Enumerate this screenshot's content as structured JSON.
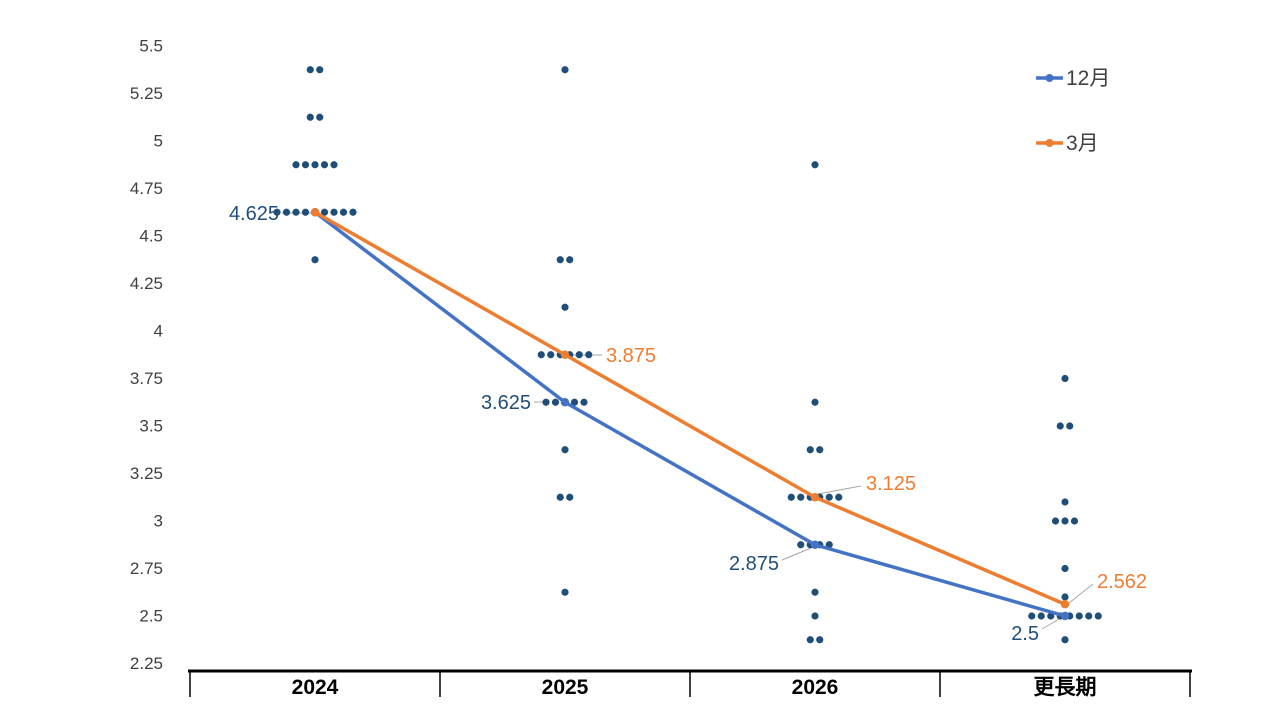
{
  "chart_data": {
    "type": "scatter",
    "categories": [
      "2024",
      "2025",
      "2026",
      "更長期"
    ],
    "ylim": [
      2.25,
      5.5
    ],
    "ytick_step": 0.25,
    "yticks": [
      "5.5",
      "5.25",
      "5",
      "4.75",
      "4.5",
      "4.25",
      "4",
      "3.75",
      "3.5",
      "3.25",
      "3",
      "2.75",
      "2.5",
      "2.25"
    ],
    "grid": false,
    "legend_position": "top-right",
    "colors": {
      "dots": "#1f4e79",
      "december_line": "#4472c4",
      "march_line": "#ed7d31",
      "leader_line": "#a6a6a6",
      "axis_line": "#000000",
      "ytick_label": "#404040",
      "category_label": "#000000",
      "legend_label": "#404040"
    },
    "dot_series": {
      "name": "participant-dots",
      "color": "#1f4e79",
      "points": [
        {
          "category": "2024",
          "value": 5.375,
          "count": 2
        },
        {
          "category": "2024",
          "value": 5.125,
          "count": 2
        },
        {
          "category": "2024",
          "value": 4.875,
          "count": 5
        },
        {
          "category": "2024",
          "value": 4.625,
          "count": 9
        },
        {
          "category": "2024",
          "value": 4.375,
          "count": 1
        },
        {
          "category": "2025",
          "value": 5.375,
          "count": 1
        },
        {
          "category": "2025",
          "value": 4.375,
          "count": 2
        },
        {
          "category": "2025",
          "value": 4.125,
          "count": 1
        },
        {
          "category": "2025",
          "value": 3.875,
          "count": 6
        },
        {
          "category": "2025",
          "value": 3.625,
          "count": 5
        },
        {
          "category": "2025",
          "value": 3.375,
          "count": 1
        },
        {
          "category": "2025",
          "value": 3.125,
          "count": 2
        },
        {
          "category": "2025",
          "value": 2.625,
          "count": 1
        },
        {
          "category": "2026",
          "value": 4.875,
          "count": 1
        },
        {
          "category": "2026",
          "value": 3.625,
          "count": 1
        },
        {
          "category": "2026",
          "value": 3.375,
          "count": 2
        },
        {
          "category": "2026",
          "value": 3.125,
          "count": 6
        },
        {
          "category": "2026",
          "value": 2.875,
          "count": 4
        },
        {
          "category": "2026",
          "value": 2.625,
          "count": 1
        },
        {
          "category": "2026",
          "value": 2.5,
          "count": 1
        },
        {
          "category": "2026",
          "value": 2.375,
          "count": 2
        },
        {
          "category": "更長期",
          "value": 3.75,
          "count": 1
        },
        {
          "category": "更長期",
          "value": 3.5,
          "count": 2
        },
        {
          "category": "更長期",
          "value": 3.1,
          "count": 1
        },
        {
          "category": "更長期",
          "value": 3.0,
          "count": 3
        },
        {
          "category": "更長期",
          "value": 2.75,
          "count": 1
        },
        {
          "category": "更長期",
          "value": 2.6,
          "count": 1
        },
        {
          "category": "更長期",
          "value": 2.5,
          "count": 8
        },
        {
          "category": "更長期",
          "value": 2.375,
          "count": 1
        }
      ]
    },
    "line_series": [
      {
        "name": "12月",
        "color": "#4472c4",
        "values": [
          4.625,
          3.625,
          2.875,
          2.5
        ]
      },
      {
        "name": "3月",
        "color": "#ed7d31",
        "values": [
          4.625,
          3.875,
          3.125,
          2.562
        ]
      }
    ],
    "data_labels": [
      {
        "text": "4.625",
        "series": "12月",
        "category": "2024",
        "color": "#1f4e79",
        "side": "left"
      },
      {
        "text": "3.875",
        "series": "3月",
        "category": "2025",
        "color": "#ed7d31",
        "side": "right"
      },
      {
        "text": "3.625",
        "series": "12月",
        "category": "2025",
        "color": "#1f4e79",
        "side": "left"
      },
      {
        "text": "3.125",
        "series": "3月",
        "category": "2026",
        "color": "#ed7d31",
        "side": "right"
      },
      {
        "text": "2.875",
        "series": "12月",
        "category": "2026",
        "color": "#1f4e79",
        "side": "left"
      },
      {
        "text": "2.562",
        "series": "3月",
        "category": "更長期",
        "color": "#ed7d31",
        "side": "right"
      },
      {
        "text": "2.5",
        "series": "12月",
        "category": "更長期",
        "color": "#1f4e79",
        "side": "left"
      }
    ],
    "legend": [
      {
        "label": "12月",
        "color": "#4472c4"
      },
      {
        "label": "3月",
        "color": "#ed7d31"
      }
    ]
  }
}
